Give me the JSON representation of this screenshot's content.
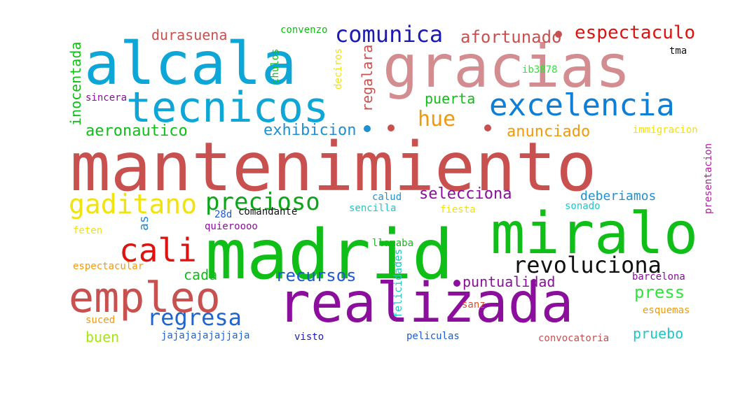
{
  "words": [
    {
      "text": "mantenimiento",
      "color": "#c8504f"
    },
    {
      "text": "madrid",
      "color": "#0fbe16"
    },
    {
      "text": "alcala",
      "color": "#0ea6d6"
    },
    {
      "text": "gracias",
      "color": "#d38c8f"
    },
    {
      "text": "tecnicos",
      "color": "#0ea6d6"
    },
    {
      "text": "miralo",
      "color": "#0fbe16"
    },
    {
      "text": "realizada",
      "color": "#8b0f9c"
    },
    {
      "text": "empleo",
      "color": "#c8504f"
    },
    {
      "text": "excelencia",
      "color": "#0e7fd6"
    },
    {
      "text": "cali",
      "color": "#e0120f"
    },
    {
      "text": "precioso",
      "color": "#0fa41a"
    },
    {
      "text": "gaditano",
      "color": "#f2e20e"
    },
    {
      "text": "revoluciona",
      "color": "#111111"
    },
    {
      "text": "comunica",
      "color": "#1a1ab4"
    },
    {
      "text": "regresa",
      "color": "#1e64d2"
    },
    {
      "text": "espectaculo",
      "color": "#e0120f"
    },
    {
      "text": "afortunado",
      "color": "#c8504f"
    },
    {
      "text": "hue",
      "color": "#f29a0e"
    },
    {
      "text": "exhibicion",
      "color": "#1e90d2"
    },
    {
      "text": "aeronautico",
      "color": "#0fbe16"
    },
    {
      "text": "anunciado",
      "color": "#f29a0e"
    },
    {
      "text": "selecciona",
      "color": "#8b0f9c"
    },
    {
      "text": "recursos",
      "color": "#1e5ad2"
    },
    {
      "text": "deberiamos",
      "color": "#1e90d2"
    },
    {
      "text": "press",
      "color": "#2ee63a"
    },
    {
      "text": "puerta",
      "color": "#0fbe16"
    },
    {
      "text": "durasuena",
      "color": "#c8504f"
    },
    {
      "text": "inocentada",
      "color": "#0fbe16"
    },
    {
      "text": "regalara",
      "color": "#c8504f"
    },
    {
      "text": "puntualidad",
      "color": "#8b0f9c"
    },
    {
      "text": "cada",
      "color": "#0fbe16"
    },
    {
      "text": "buen",
      "color": "#a6e60e"
    },
    {
      "text": "pruebo",
      "color": "#1ec8c8"
    },
    {
      "text": "as",
      "color": "#1e90d2"
    },
    {
      "text": "felicidades",
      "color": "#1ec8c8"
    },
    {
      "text": "presentacion",
      "color": "#b41ea0"
    },
    {
      "text": "convenzo",
      "color": "#0fbe16"
    },
    {
      "text": "chulos",
      "color": "#0fbe16"
    },
    {
      "text": "deciros",
      "color": "#f2e20e"
    },
    {
      "text": "ib3878",
      "color": "#2ee63a"
    },
    {
      "text": "tma",
      "color": "#111111"
    },
    {
      "text": "sincera",
      "color": "#8b0f9c"
    },
    {
      "text": "immigracion",
      "color": "#f2e20e"
    },
    {
      "text": "calud",
      "color": "#1e90d2"
    },
    {
      "text": "sencilla",
      "color": "#1ec8c8"
    },
    {
      "text": "fiesta",
      "color": "#f2e20e"
    },
    {
      "text": "sonado",
      "color": "#1ec8c8"
    },
    {
      "text": "28d",
      "color": "#1e5ad2"
    },
    {
      "text": "comandante",
      "color": "#111111"
    },
    {
      "text": "quieroooo",
      "color": "#8b0f9c"
    },
    {
      "text": "feten",
      "color": "#f2e20e"
    },
    {
      "text": "llamaba",
      "color": "#0fbe16"
    },
    {
      "text": "espectacular",
      "color": "#f29a0e"
    },
    {
      "text": "barcelona",
      "color": "#8b0f9c"
    },
    {
      "text": "sanz",
      "color": "#e0502f"
    },
    {
      "text": "esquemas",
      "color": "#f29a0e"
    },
    {
      "text": "suced",
      "color": "#f29a0e"
    },
    {
      "text": "jajajajajajjaja",
      "color": "#1e64d2"
    },
    {
      "text": "visto",
      "color": "#1a1ab4"
    },
    {
      "text": "peliculas",
      "color": "#1e5ad2"
    },
    {
      "text": "convocatoria",
      "color": "#c8504f"
    }
  ],
  "dots": [
    {
      "color": "#c8504f"
    },
    {
      "color": "#c8504f"
    },
    {
      "color": "#1e90d2"
    },
    {
      "color": "#c8504f"
    },
    {
      "color": "#8b0f9c"
    }
  ]
}
